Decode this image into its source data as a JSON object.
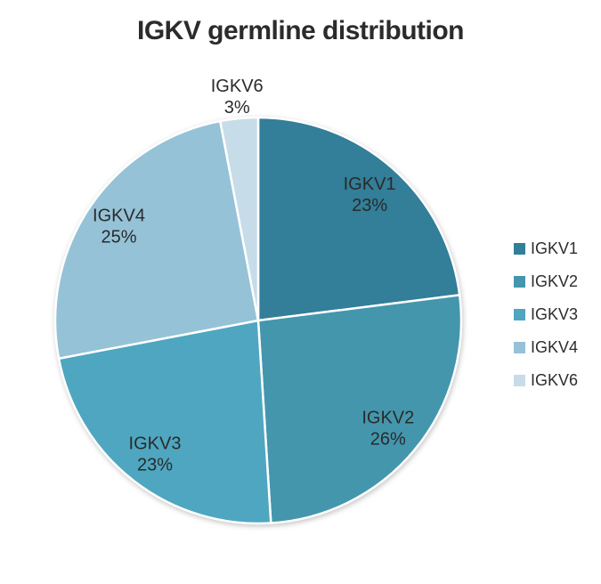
{
  "title": "IGKV germline distribution",
  "chart_data": {
    "type": "pie",
    "title": "IGKV germline distribution",
    "categories": [
      "IGKV1",
      "IGKV2",
      "IGKV3",
      "IGKV4",
      "IGKV6"
    ],
    "values": [
      23,
      26,
      23,
      25,
      3
    ],
    "unit": "%",
    "colors": [
      "#337E98",
      "#4496AD",
      "#4FA6C0",
      "#95C2D7",
      "#C7DCE9"
    ],
    "slice_labels": [
      "IGKV1 23%",
      "IGKV2 26%",
      "IGKV3 23%",
      "IGKV4 25%",
      "IGKV6 3%"
    ],
    "label_text_color": "#2a2a2a",
    "slice_border_color": "#ffffff",
    "start_angle_deg": 0,
    "direction": "clockwise",
    "legend_position": "right",
    "legend": [
      {
        "label": "IGKV1",
        "color": "#337E98"
      },
      {
        "label": "IGKV2",
        "color": "#4496AD"
      },
      {
        "label": "IGKV3",
        "color": "#4FA6C0"
      },
      {
        "label": "IGKV4",
        "color": "#95C2D7"
      },
      {
        "label": "IGKV6",
        "color": "#C7DCE9"
      }
    ]
  },
  "styles": {
    "title_color": "#2b2b2b",
    "background": "#ffffff"
  }
}
